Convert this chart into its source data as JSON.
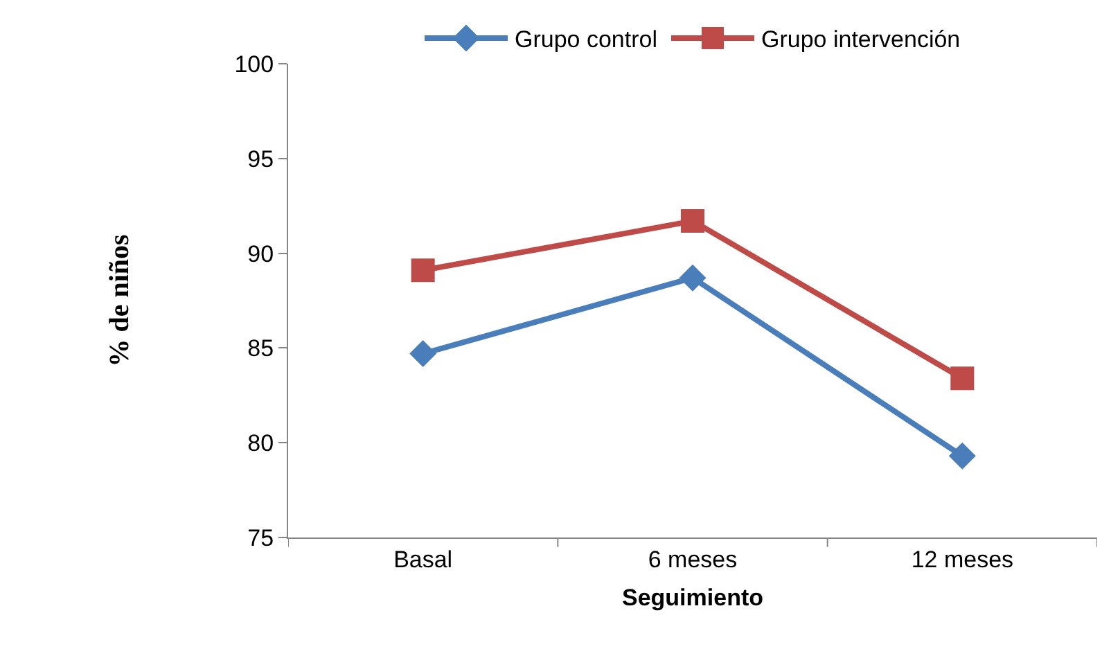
{
  "chart_data": {
    "type": "line",
    "xlabel": "Seguimiento",
    "ylabel": "% de niños",
    "categories": [
      "Basal",
      "6 meses",
      "12 meses"
    ],
    "series": [
      {
        "name": "Grupo control",
        "color": "#4a7ebb",
        "marker": "diamond",
        "values": [
          84.7,
          88.7,
          79.3
        ]
      },
      {
        "name": "Grupo intervención",
        "color": "#be4b48",
        "marker": "square",
        "values": [
          89.1,
          91.7,
          83.4
        ]
      }
    ],
    "ylim": [
      75,
      100
    ],
    "yticks": [
      75,
      80,
      85,
      90,
      95,
      100
    ],
    "grid": false,
    "legend": "top",
    "line_style": "solid"
  }
}
